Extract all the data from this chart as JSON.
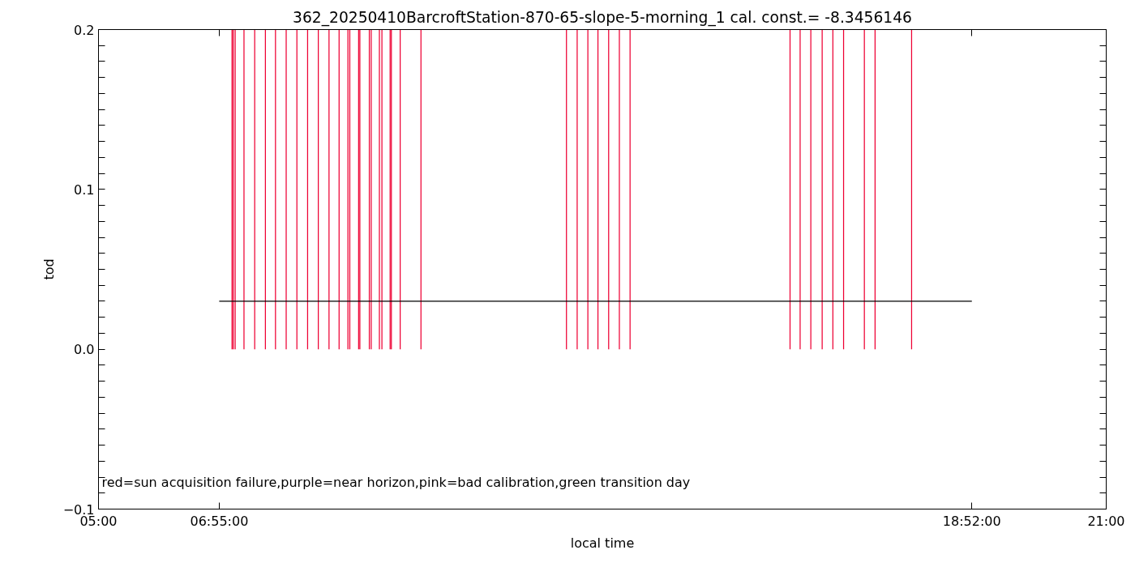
{
  "chart_data": {
    "type": "bar",
    "title": "362_20250410BarcroftStation-870-65-slope-5-morning_1 cal. const.= -8.3456146",
    "xlabel": "local time",
    "ylabel": "tod",
    "series": [
      {
        "color": "#ee0033",
        "x": [
          7.12,
          7.14,
          7.17,
          7.31,
          7.48,
          7.65,
          7.81,
          7.98,
          8.15,
          8.32,
          8.49,
          8.66,
          8.82,
          8.96,
          8.99,
          9.13,
          9.15,
          9.3,
          9.33,
          9.46,
          9.5,
          9.63,
          9.65,
          9.79,
          10.12,
          12.43,
          12.6,
          12.77,
          12.93,
          13.1,
          13.27,
          13.44,
          15.98,
          16.14,
          16.31,
          16.49,
          16.66,
          16.83,
          17.16,
          17.33,
          17.91
        ],
        "values": [
          0.2,
          0.2,
          0.2,
          0.2,
          0.2,
          0.2,
          0.2,
          0.2,
          0.2,
          0.2,
          0.2,
          0.2,
          0.2,
          0.2,
          0.2,
          0.2,
          0.2,
          0.2,
          0.2,
          0.2,
          0.2,
          0.2,
          0.2,
          0.2,
          0.2,
          0.2,
          0.2,
          0.2,
          0.2,
          0.2,
          0.2,
          0.2,
          0.2,
          0.2,
          0.2,
          0.2,
          0.2,
          0.2,
          0.2,
          0.2,
          0.2
        ]
      },
      {
        "type": "line",
        "color": "#000000",
        "x": [
          6.9167,
          18.8667
        ],
        "values": [
          0.03,
          0.03
        ]
      }
    ],
    "xlim": [
      5,
      21
    ],
    "xticks": [
      {
        "value": 5,
        "label": "05:00"
      },
      {
        "value": 6.9167,
        "label": "06:55:00"
      },
      {
        "value": 18.8667,
        "label": "18:52:00"
      },
      {
        "value": 21,
        "label": "21:00"
      }
    ],
    "ylim": [
      -0.1,
      0.2
    ],
    "yticks": [
      {
        "value": -0.1,
        "label": "−0.1"
      },
      {
        "value": -0.09,
        "label": null
      },
      {
        "value": -0.08,
        "label": null
      },
      {
        "value": -0.07,
        "label": null
      },
      {
        "value": -0.06,
        "label": null
      },
      {
        "value": -0.05,
        "label": null
      },
      {
        "value": -0.04,
        "label": null
      },
      {
        "value": -0.03,
        "label": null
      },
      {
        "value": -0.02,
        "label": null
      },
      {
        "value": -0.01,
        "label": null
      },
      {
        "value": 0,
        "label": "0.0"
      },
      {
        "value": 0.01,
        "label": null
      },
      {
        "value": 0.02,
        "label": null
      },
      {
        "value": 0.03,
        "label": null
      },
      {
        "value": 0.04,
        "label": null
      },
      {
        "value": 0.05,
        "label": null
      },
      {
        "value": 0.06,
        "label": null
      },
      {
        "value": 0.07,
        "label": null
      },
      {
        "value": 0.08,
        "label": null
      },
      {
        "value": 0.09,
        "label": null
      },
      {
        "value": 0.1,
        "label": "0.1"
      },
      {
        "value": 0.11,
        "label": null
      },
      {
        "value": 0.12,
        "label": null
      },
      {
        "value": 0.13,
        "label": null
      },
      {
        "value": 0.14,
        "label": null
      },
      {
        "value": 0.15,
        "label": null
      },
      {
        "value": 0.16,
        "label": null
      },
      {
        "value": 0.17,
        "label": null
      },
      {
        "value": 0.18,
        "label": null
      },
      {
        "value": 0.19,
        "label": null
      },
      {
        "value": 0.2,
        "label": "0.2"
      }
    ],
    "annotations": [
      "red=sun acquisition failure,purple=near horizon,pink=bad calibration,green transition day"
    ],
    "grid": false
  }
}
